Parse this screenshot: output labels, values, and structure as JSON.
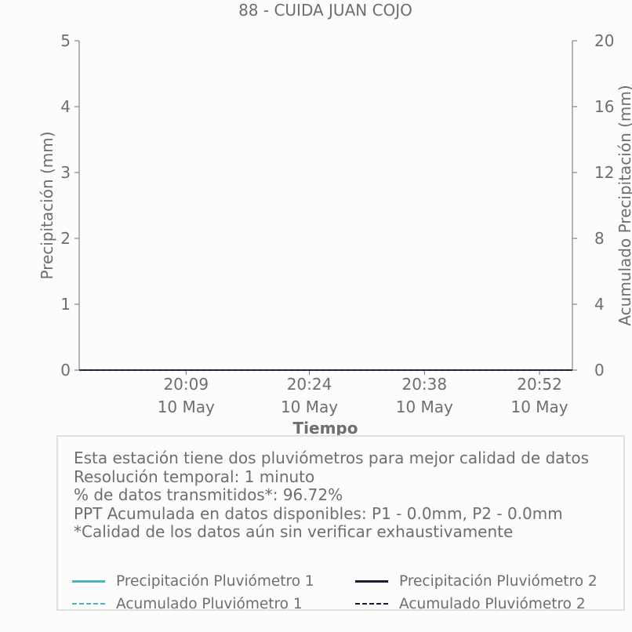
{
  "chart_data": {
    "type": "line",
    "title": "88 - CUIDA JUAN COJO",
    "xlabel": "Tiempo",
    "ylabel": "Precipitación (mm)",
    "ylabel_right": "Acumulado Precipitación (mm)",
    "ylim": [
      0,
      5
    ],
    "ylim_right": [
      0,
      20
    ],
    "yticks": [
      "0",
      "1",
      "2",
      "3",
      "4",
      "5"
    ],
    "yticks_right": [
      "0",
      "4",
      "8",
      "12",
      "16",
      "20"
    ],
    "x_range": [
      "2024-05-10 19:56",
      "2024-05-10 20:56"
    ],
    "xticks": [
      {
        "t": "2024-05-10 20:09",
        "time": "20:09",
        "date": "10 May"
      },
      {
        "t": "2024-05-10 20:24",
        "time": "20:24",
        "date": "10 May"
      },
      {
        "t": "2024-05-10 20:38",
        "time": "20:38",
        "date": "10 May"
      },
      {
        "t": "2024-05-10 20:52",
        "time": "20:52",
        "date": "10 May"
      }
    ],
    "series": [
      {
        "name": "Precipitación Pluviómetro 1",
        "axis": "left",
        "style": "solid",
        "color": "#4db3bf",
        "x": [
          "2024-05-10 19:56",
          "2024-05-10 20:56"
        ],
        "values": [
          0,
          0
        ]
      },
      {
        "name": "Precipitación Pluviómetro 2",
        "axis": "left",
        "style": "solid",
        "color": "#1a1a33",
        "x": [
          "2024-05-10 19:56",
          "2024-05-10 20:56"
        ],
        "values": [
          0,
          0
        ]
      },
      {
        "name": "Acumulado Pluviómetro 1",
        "axis": "right",
        "style": "dashed",
        "color": "#4db3bf",
        "x": [
          "2024-05-10 19:56",
          "2024-05-10 20:56"
        ],
        "values": [
          0,
          0
        ]
      },
      {
        "name": "Acumulado Pluviómetro 2",
        "axis": "right",
        "style": "dashed",
        "color": "#1a1a33",
        "x": [
          "2024-05-10 19:56",
          "2024-05-10 20:56"
        ],
        "values": [
          0,
          0
        ]
      }
    ],
    "grid": false,
    "legend_placement": "bottom"
  },
  "info": {
    "line1": "Esta estación tiene dos pluviómetros para mejor calidad de datos",
    "line2": "Resolución temporal: 1 minuto",
    "line3": "% de datos transmitidos*: 96.72%",
    "line4": "PPT Acumulada en datos disponibles: P1 - 0.0mm, P2 - 0.0mm",
    "line5": "*Calidad de los datos aún sin verificar exhaustivamente"
  },
  "colors": {
    "text": "#6e6e6e",
    "axis": "#6e6e6e",
    "background": "#fcfcfc",
    "box_border": "#e0e0e0",
    "series1": "#4db3bf",
    "series2": "#1a1a33"
  }
}
